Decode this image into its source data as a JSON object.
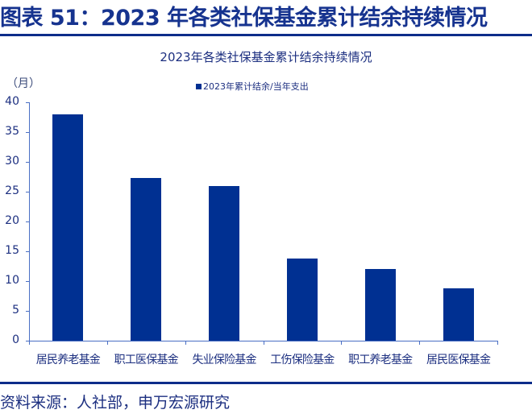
{
  "figure": {
    "title": "图表 51：2023 年各类社保基金累计结余持续情况",
    "source": "资料来源：人社部，申万宏源研究"
  },
  "colors": {
    "bar": "#003092",
    "title": "#16338f",
    "axis": "#4a6fc4"
  },
  "chart_data": {
    "type": "bar",
    "title": "2023年各类社保基金累计结余持续情况",
    "unit_label": "（月）",
    "xlabel": "",
    "ylabel": "（月）",
    "ylim": [
      0,
      40
    ],
    "yticks": [
      0,
      5,
      10,
      15,
      20,
      25,
      30,
      35,
      40
    ],
    "grid": false,
    "legend_position": "top",
    "categories": [
      "居民养老基金",
      "职工医保基金",
      "失业保险基金",
      "工伤保险基金",
      "职工养老基金",
      "居民医保基金"
    ],
    "series": [
      {
        "name": "2023年累计结余/当年支出",
        "values": [
          38.0,
          27.3,
          25.9,
          13.8,
          12.0,
          8.8
        ]
      }
    ]
  }
}
